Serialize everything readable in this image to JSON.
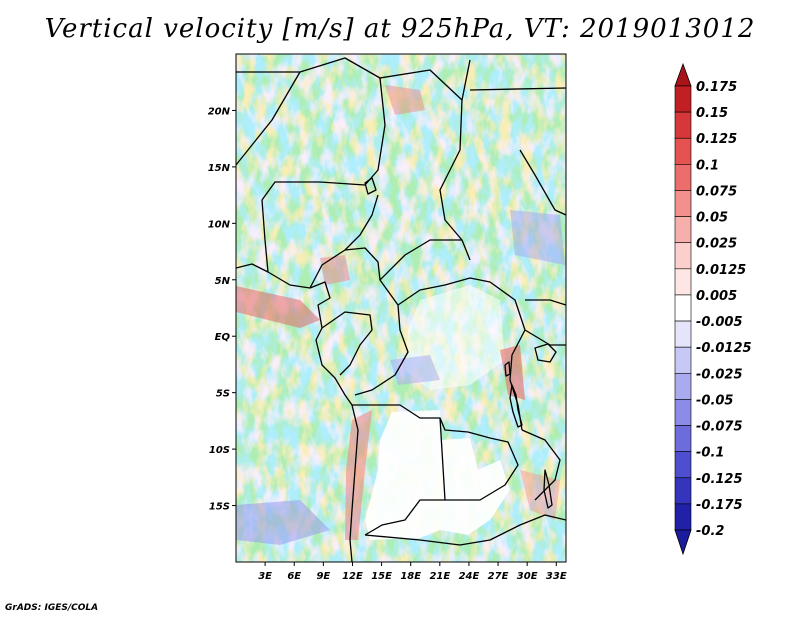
{
  "title": "Vertical velocity [m/s] at 925hPa, VT: 2019013012",
  "credit": "GrADS: IGES/COLA",
  "map": {
    "lon_range": [
      0,
      34
    ],
    "lat_range": [
      -20,
      25
    ],
    "x_ticks": [
      {
        "value": 3,
        "label": "3E"
      },
      {
        "value": 6,
        "label": "6E"
      },
      {
        "value": 9,
        "label": "9E"
      },
      {
        "value": 12,
        "label": "12E"
      },
      {
        "value": 15,
        "label": "15E"
      },
      {
        "value": 18,
        "label": "18E"
      },
      {
        "value": 21,
        "label": "21E"
      },
      {
        "value": 24,
        "label": "24E"
      },
      {
        "value": 27,
        "label": "27E"
      },
      {
        "value": 30,
        "label": "30E"
      },
      {
        "value": 33,
        "label": "33E"
      }
    ],
    "y_ticks": [
      {
        "value": 20,
        "label": "20N"
      },
      {
        "value": 15,
        "label": "15N"
      },
      {
        "value": 10,
        "label": "10N"
      },
      {
        "value": 5,
        "label": "5N"
      },
      {
        "value": 0,
        "label": "EQ"
      },
      {
        "value": -5,
        "label": "5S"
      },
      {
        "value": -10,
        "label": "10S"
      },
      {
        "value": -15,
        "label": "15S"
      }
    ]
  },
  "colorbar": {
    "levels": [
      {
        "label": "0.175",
        "color": "#a8141a"
      },
      {
        "label": "0.15",
        "color": "#c21f24"
      },
      {
        "label": "0.125",
        "color": "#d6383a"
      },
      {
        "label": "0.1",
        "color": "#e55250"
      },
      {
        "label": "0.075",
        "color": "#ec6e6c"
      },
      {
        "label": "0.05",
        "color": "#f38f8c"
      },
      {
        "label": "0.025",
        "color": "#f7afac"
      },
      {
        "label": "0.0125",
        "color": "#fbcfcc"
      },
      {
        "label": "0.005",
        "color": "#fde6e4"
      },
      {
        "label": "-0.005",
        "color": "#ffffff"
      },
      {
        "label": "-0.0125",
        "color": "#e4e4fb"
      },
      {
        "label": "-0.025",
        "color": "#c8c8f6"
      },
      {
        "label": "-0.05",
        "color": "#aaaaef"
      },
      {
        "label": "-0.075",
        "color": "#8b8be8"
      },
      {
        "label": "-0.1",
        "color": "#6c6cdd"
      },
      {
        "label": "-0.125",
        "color": "#4e4ed0"
      },
      {
        "label": "-0.175",
        "color": "#3434bd"
      },
      {
        "label": "-0.2",
        "color": "#2020a8"
      }
    ],
    "top_color": "#a8141a",
    "bottom_color": "#1b1b9e"
  }
}
